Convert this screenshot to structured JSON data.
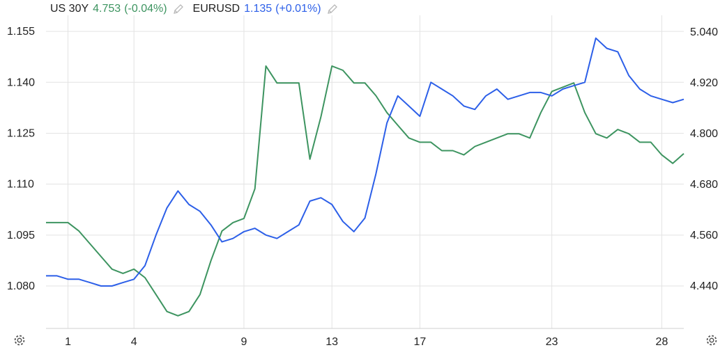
{
  "legend": {
    "us30y": {
      "name": "US 30Y",
      "value": "4.753",
      "change": "(-0.04%)"
    },
    "eurusd": {
      "name": "EURUSD",
      "value": "1.135",
      "change": "(+0.01%)"
    }
  },
  "colors": {
    "us30y": "#3d9460",
    "eurusd": "#2c5fe8",
    "grid": "#e3e3e3"
  },
  "icons": {
    "edit": "pencil-icon",
    "settings": "gear-icon"
  },
  "chart_data": {
    "type": "line",
    "x": [
      0,
      0.5,
      1,
      1.5,
      2,
      2.5,
      3,
      3.5,
      4,
      4.5,
      5,
      5.5,
      6,
      6.5,
      7,
      7.5,
      8,
      8.5,
      9,
      9.5,
      10,
      10.5,
      11,
      11.5,
      12,
      12.5,
      13,
      13.5,
      14,
      14.5,
      15,
      15.5,
      16,
      16.5,
      17,
      17.5,
      18,
      18.5,
      19,
      19.5,
      20,
      20.5,
      21,
      21.5,
      22,
      22.5,
      23,
      23.5,
      24,
      24.5,
      25,
      25.5,
      26,
      26.5,
      27,
      27.5,
      28,
      28.5,
      29
    ],
    "x_ticks": [
      {
        "x": 1,
        "label": "1"
      },
      {
        "x": 4,
        "label": "4"
      },
      {
        "x": 9,
        "label": "9"
      },
      {
        "x": 13,
        "label": "13"
      },
      {
        "x": 17,
        "label": "17"
      },
      {
        "x": 23,
        "label": "23"
      },
      {
        "x": 28,
        "label": "28"
      }
    ],
    "left_axis": {
      "series": "EURUSD",
      "range": [
        1.0675,
        1.1585
      ],
      "ticks": [
        "1.155",
        "1.140",
        "1.125",
        "1.110",
        "1.095",
        "1.080"
      ]
    },
    "right_axis": {
      "series": "US 30Y",
      "range": [
        4.34,
        5.07
      ],
      "ticks": [
        "5.040",
        "4.920",
        "4.800",
        "4.680",
        "4.560",
        "4.440"
      ]
    },
    "series": [
      {
        "name": "EURUSD",
        "axis": "left",
        "values": [
          1.083,
          1.083,
          1.082,
          1.082,
          1.081,
          1.08,
          1.08,
          1.081,
          1.082,
          1.086,
          1.095,
          1.103,
          1.108,
          1.104,
          1.102,
          1.098,
          1.093,
          1.094,
          1.096,
          1.097,
          1.095,
          1.094,
          1.096,
          1.098,
          1.105,
          1.106,
          1.104,
          1.099,
          1.096,
          1.1,
          1.113,
          1.128,
          1.136,
          1.133,
          1.13,
          1.14,
          1.138,
          1.136,
          1.133,
          1.132,
          1.136,
          1.138,
          1.135,
          1.136,
          1.137,
          1.137,
          1.136,
          1.138,
          1.139,
          1.14,
          1.153,
          1.15,
          1.149,
          1.142,
          1.138,
          1.136,
          1.135,
          1.134,
          1.135
        ]
      },
      {
        "name": "US 30Y",
        "axis": "right",
        "values": [
          4.59,
          4.59,
          4.59,
          4.57,
          4.54,
          4.51,
          4.48,
          4.47,
          4.48,
          4.46,
          4.42,
          4.38,
          4.37,
          4.38,
          4.42,
          4.5,
          4.57,
          4.59,
          4.6,
          4.67,
          4.96,
          4.92,
          4.92,
          4.92,
          4.74,
          4.84,
          4.96,
          4.95,
          4.92,
          4.92,
          4.89,
          4.85,
          4.82,
          4.79,
          4.78,
          4.78,
          4.76,
          4.76,
          4.75,
          4.77,
          4.78,
          4.79,
          4.8,
          4.8,
          4.79,
          4.85,
          4.9,
          4.91,
          4.92,
          4.85,
          4.8,
          4.79,
          4.81,
          4.8,
          4.78,
          4.78,
          4.75,
          4.73,
          4.753
        ]
      }
    ]
  }
}
